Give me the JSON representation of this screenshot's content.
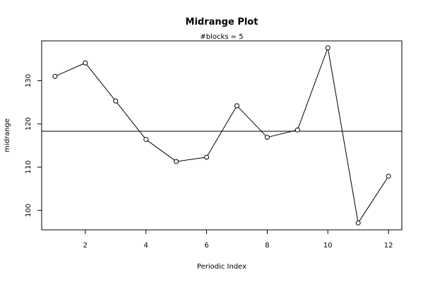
{
  "chart_data": {
    "type": "line",
    "title": "Midrange Plot",
    "subtitle": "#blocks =  5",
    "xlabel": "Periodic Index",
    "ylabel": "midrange",
    "x": [
      1,
      2,
      3,
      4,
      5,
      6,
      7,
      8,
      9,
      10,
      11,
      12
    ],
    "y": [
      131.0,
      134.1,
      125.3,
      116.4,
      111.3,
      112.3,
      124.2,
      116.9,
      118.6,
      137.6,
      97.1,
      107.9
    ],
    "reference_line": 118.3,
    "xlim": [
      0.56,
      12.44
    ],
    "ylim": [
      95.5,
      139.2
    ],
    "x_ticks": [
      2,
      4,
      6,
      8,
      10,
      12
    ],
    "y_ticks": [
      100,
      110,
      120,
      130
    ],
    "marker": "open-circle",
    "grid": false,
    "legend": "none"
  }
}
